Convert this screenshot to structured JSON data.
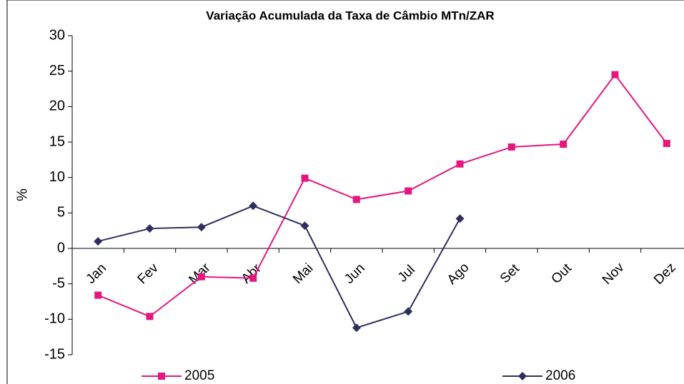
{
  "chart_data": {
    "type": "line",
    "title": "Variação Acumulada da Taxa de Câmbio MTn/ZAR",
    "ylabel": "%",
    "categories": [
      "Jan",
      "Fev",
      "Mar",
      "Abr",
      "Mai",
      "Jun",
      "Jul",
      "Ago",
      "Set",
      "Out",
      "Nov",
      "Dez"
    ],
    "series": [
      {
        "name": "2005",
        "color": "#e5177f",
        "marker": "square",
        "values": [
          -6.6,
          -9.6,
          -4,
          -4.2,
          9.9,
          6.9,
          8.1,
          11.9,
          14.3,
          14.7,
          24.5,
          14.8
        ]
      },
      {
        "name": "2006",
        "color": "#2f2f5f",
        "marker": "diamond",
        "values": [
          1.0,
          2.8,
          3.0,
          6.0,
          3.2,
          -11.2,
          -8.9,
          4.2,
          null,
          null,
          null,
          null
        ]
      }
    ],
    "ylim": [
      -15,
      30
    ],
    "yticks": [
      -15,
      -10,
      -5,
      0,
      5,
      10,
      15,
      20,
      25,
      30
    ],
    "grid": false,
    "legend": "bottom"
  }
}
